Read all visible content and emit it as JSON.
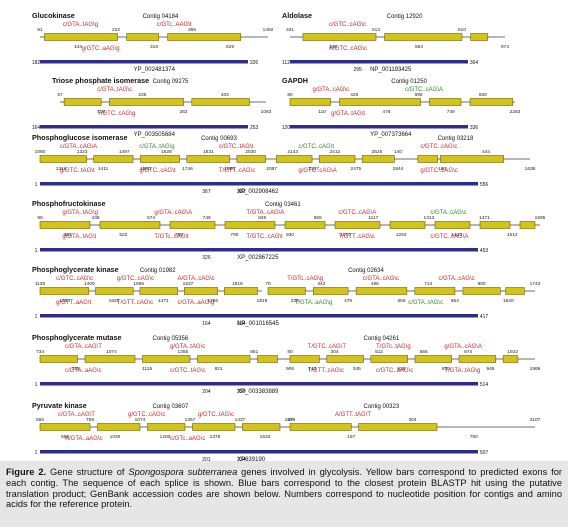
{
  "colors": {
    "exon": "#d4c41a",
    "exon_stroke": "#6b6300",
    "intron": "#8a8a8a",
    "protein": "#2e2e8a",
    "splice_red": "#c8282a",
    "splice_green": "#2e8a2e",
    "caption_bg": "#e6e6e6"
  },
  "panels": [
    {
      "contigs": [
        {
          "title": "Glucokinase",
          "label": "Contig 04184",
          "splices": [
            {
              "text": "c/GTA..tAG\\g",
              "color": "red"
            },
            {
              "text": "c/GTc..AAG\\t",
              "color": "red"
            },
            {
              "text": "g/GTC..aAG\\g",
              "color": "red"
            }
          ],
          "nums": [
            "51",
            "143",
            "232",
            "316",
            "365",
            "629",
            "1492"
          ]
        },
        {
          "title": "Aldolase",
          "label": "Contig 12920",
          "splices": [
            {
              "text": "c/GTC..cAG\\c",
              "color": "red"
            },
            {
              "text": "A/GTC..cAG\\c",
              "color": "red"
            }
          ],
          "nums": [
            "331",
            "340",
            "513",
            "564",
            "810",
            "874"
          ]
        }
      ],
      "proteins": [
        {
          "accession": "YP_002481374",
          "nums": [
            "182",
            "326"
          ]
        },
        {
          "accession": "NP_001193425",
          "nums": [
            "112",
            "295",
            "364"
          ]
        }
      ]
    },
    {
      "contigs": [
        {
          "title": "Triose phosphate isomerase",
          "label": "Contig 09275",
          "splices": [
            {
              "text": "c/GTA..tAG\\c",
              "color": "red"
            },
            {
              "text": "T/GTC..cAG\\g",
              "color": "red"
            }
          ],
          "nums": [
            "57",
            "110",
            "235",
            "262",
            "403",
            "1063"
          ]
        },
        {
          "title": "GAPDH",
          "label": "Contig 01250",
          "splices": [
            {
              "text": "g/GTA..cAG\\c",
              "color": "red"
            },
            {
              "text": "c/GTC..cAG\\A",
              "color": "green"
            },
            {
              "text": "g/GTA..tAG\\t",
              "color": "red"
            }
          ],
          "nums": [
            "80",
            "110",
            "425",
            "478",
            "696",
            "749",
            "926",
            "2283"
          ]
        }
      ],
      "proteins": [
        {
          "accession": "YP_003505684",
          "nums": [
            "164",
            "253"
          ]
        },
        {
          "accession": "YP_007373664",
          "nums": [
            "120",
            "336"
          ]
        }
      ]
    },
    {
      "contigs": [
        {
          "title": "Phosphoglucose isomerase",
          "label": "Contig 00693",
          "splices": [
            {
              "text": "c/GTA..cAG\\A",
              "color": "red"
            },
            {
              "text": "c/GTA..tAG\\g",
              "color": "green"
            },
            {
              "text": "c/GTC..tAG\\t",
              "color": "red"
            },
            {
              "text": "c/GTC..cAG\\t",
              "color": "green"
            },
            {
              "text": "g/GTC..tAG\\t",
              "color": "red"
            },
            {
              "text": "g/GTC..cAG\\t",
              "color": "red"
            },
            {
              "text": "T/GTT..cAG\\c",
              "color": "red"
            },
            {
              "text": "g/GTC..cAG\\A",
              "color": "red"
            }
          ],
          "nums": [
            "1080",
            "1314",
            "1323",
            "1411",
            "1497",
            "1580",
            "1629",
            "1746",
            "1831",
            "1986",
            "2030",
            "2087",
            "2143",
            "2347",
            "2412",
            "2475",
            "2525",
            "2844"
          ]
        },
        {
          "title": "",
          "label": "Contig 03218",
          "splices": [
            {
              "text": "c/GTC..cAG\\c",
              "color": "red"
            },
            {
              "text": "g/GTC..cAG\\c",
              "color": "red"
            }
          ],
          "nums": [
            "140",
            "180",
            "444",
            "1638"
          ]
        }
      ],
      "proteins": [
        {
          "accession": "XP_002908462",
          "nums": [
            "1",
            "367",
            "382",
            "556"
          ]
        }
      ]
    },
    {
      "contigs": [
        {
          "title": "Phosphofructokinase",
          "label": "Contig 03461",
          "splices": [
            {
              "text": "g/GTA..tAG\\g",
              "color": "red"
            },
            {
              "text": "g/GTA..cAG\\A",
              "color": "red"
            },
            {
              "text": "T/GTA..cAG\\A",
              "color": "red"
            },
            {
              "text": "c/GTC..cAG\\A",
              "color": "red"
            },
            {
              "text": "c/GTA..cAG\\c",
              "color": "green"
            },
            {
              "text": "g/GTA..tAG\\t",
              "color": "red"
            },
            {
              "text": "T/GTc..cAG\\t",
              "color": "red"
            },
            {
              "text": "T/GTC..cAG\\t",
              "color": "red"
            },
            {
              "text": "T/GTT..cAG\\c",
              "color": "red"
            },
            {
              "text": "c/GTC..cAG\\A",
              "color": "red"
            }
          ],
          "nums": [
            "90",
            "354",
            "438",
            "522",
            "574",
            "700",
            "749",
            "790",
            "849",
            "930",
            "965",
            "1070",
            "1117",
            "1263",
            "1313",
            "1423",
            "1471",
            "1512",
            "1595"
          ]
        }
      ],
      "proteins": [
        {
          "accession": "XP_002867225",
          "nums": [
            "1",
            "326",
            "453"
          ]
        }
      ]
    },
    {
      "contigs": [
        {
          "title": "Phosphoglycerate kinase",
          "label": "Contig 01982",
          "splices": [
            {
              "text": "c/GTC..cAG\\c",
              "color": "red"
            },
            {
              "text": "g/GTC..cAG\\c",
              "color": "red"
            },
            {
              "text": "A/GTA..cAG\\c",
              "color": "red"
            },
            {
              "text": "g/GTT..aAG\\t",
              "color": "red"
            },
            {
              "text": "T/GTT..cAG\\c",
              "color": "red"
            },
            {
              "text": "c/GTA..aAG\\g",
              "color": "red"
            }
          ],
          "nums": [
            "1135",
            "1354",
            "1409",
            "1620",
            "1696",
            "1471",
            "1537",
            "1756",
            "1818",
            "1919"
          ]
        },
        {
          "title": "",
          "label": "Contig 02634",
          "splices": [
            {
              "text": "T/GTc..cAG\\g",
              "color": "red"
            },
            {
              "text": "c/GTA..cAG\\c",
              "color": "red"
            },
            {
              "text": "c/GTA..cAG\\c",
              "color": "red"
            },
            {
              "text": "T/GTA..aAG\\g",
              "color": "green"
            },
            {
              "text": "c/GTA..tAG\\c",
              "color": "green"
            }
          ],
          "nums": [
            "70",
            "239",
            "342",
            "479",
            "496",
            "659",
            "714",
            "854",
            "900",
            "1640",
            "1743"
          ]
        }
      ],
      "proteins": [
        {
          "accession": "NP_001016545",
          "nums": [
            "1",
            "164",
            "184",
            "417"
          ]
        }
      ]
    },
    {
      "contigs": [
        {
          "title": "Phosphoglycerate mutase",
          "label": "Contig 05356",
          "splices": [
            {
              "text": "c/GTA..cAG\\T",
              "color": "red"
            },
            {
              "text": "g/GTA..tAG\\c",
              "color": "red"
            },
            {
              "text": "c/GTA..aAG\\c",
              "color": "red"
            },
            {
              "text": "c/GTC..tAG\\c",
              "color": "red"
            }
          ],
          "nums": [
            "734",
            "785",
            "1074",
            "1115",
            "1355",
            "821",
            "851",
            "906"
          ]
        },
        {
          "title": "",
          "label": "Contig 04261",
          "splices": [
            {
              "text": "T/GTC..cAG\\T",
              "color": "red"
            },
            {
              "text": "T/GTc..tAG\\g",
              "color": "red"
            },
            {
              "text": "g/GTA..cAG\\A",
              "color": "red"
            },
            {
              "text": "T/GTT..cAG\\c",
              "color": "red"
            },
            {
              "text": "c/GTC..aAG\\c",
              "color": "red"
            },
            {
              "text": "T/GTA..tAG\\g",
              "color": "red"
            }
          ],
          "nums": [
            "80",
            "143",
            "304",
            "345",
            "512",
            "528",
            "566",
            "630",
            "874",
            "945",
            "1922",
            "1969"
          ]
        }
      ],
      "proteins": [
        {
          "accession": "XP_003383889",
          "nums": [
            "1",
            "204",
            "259",
            "514"
          ]
        }
      ]
    },
    {
      "contigs": [
        {
          "title": "Pyruvate kinase",
          "label": "Contig 03607",
          "splices": [
            {
              "text": "c/GTA..cAG\\T",
              "color": "red"
            },
            {
              "text": "g/GTC..cAG\\c",
              "color": "red"
            },
            {
              "text": "g/GTC..tAG\\c",
              "color": "red"
            },
            {
              "text": "A/GTA..aAG\\c",
              "color": "red"
            },
            {
              "text": "c/GTc..aAG\\c",
              "color": "red"
            }
          ],
          "nums": [
            "560",
            "689",
            "759",
            "1030",
            "1074",
            "1200",
            "1357",
            "1379",
            "1437",
            "1533",
            "1579"
          ]
        },
        {
          "title": "",
          "label": "Contig 00323",
          "splices": [
            {
              "text": "A/GTT..tAG\\T",
              "color": "red"
            }
          ],
          "nums": [
            "49",
            "197",
            "304",
            "790",
            "3107"
          ]
        }
      ],
      "proteins": [
        {
          "accession": "XP639190",
          "nums": [
            "1",
            "201",
            "234",
            "507"
          ]
        }
      ]
    }
  ],
  "caption": {
    "label": "Figure 2.",
    "text_before": " Gene structure of ",
    "species": "Spongospora subterranea",
    "text_after": " genes involved in glycolysis. Yellow bars correspond to predicted exons for each contig. The sequence of each splice is shown. Blue bars correspond to the closest protein BLASTP hit using the putative translation product; GenBank accession codes are shown below. Numbers correspond to nucleotide position for contigs and amino acids for the reference protein."
  }
}
